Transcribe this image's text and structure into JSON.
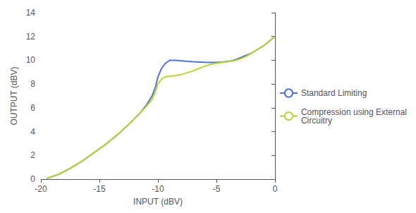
{
  "chart_data": {
    "type": "line",
    "xlabel": "INPUT (dBV)",
    "ylabel": "OUTPUT (dBV)",
    "xlim": [
      -20,
      0
    ],
    "ylim": [
      0,
      14
    ],
    "xticks": [
      -20,
      -15,
      -10,
      -5,
      0
    ],
    "yticks": [
      0,
      2,
      4,
      6,
      8,
      10,
      12,
      14
    ],
    "grid": false,
    "legend": "right",
    "x": [
      -19.5,
      -18.5,
      -17.5,
      -16.5,
      -15.5,
      -14.5,
      -13.5,
      -12.5,
      -11.5,
      -11.0,
      -10.5,
      -10.2,
      -10.0,
      -9.7,
      -9.4,
      -9.0,
      -8.5,
      -8.0,
      -7.5,
      -7.0,
      -6.5,
      -6.0,
      -5.5,
      -5.0,
      -4.5,
      -4.0,
      -3.5,
      -3.0,
      -2.5,
      -2.0,
      -1.5,
      -1.0,
      -0.5,
      0.0
    ],
    "series": [
      {
        "name": "Standard Limiting",
        "values": [
          0.05,
          0.4,
          0.9,
          1.5,
          2.2,
          2.9,
          3.7,
          4.6,
          5.6,
          6.2,
          7.0,
          7.8,
          8.6,
          9.3,
          9.7,
          10.0,
          10.0,
          9.95,
          9.9,
          9.87,
          9.85,
          9.83,
          9.82,
          9.82,
          9.85,
          9.9,
          10.0,
          10.2,
          10.4,
          10.6,
          10.9,
          11.2,
          11.6,
          12.0
        ]
      },
      {
        "name": "Compression using External\nCircuitry",
        "values": [
          0.05,
          0.4,
          0.9,
          1.5,
          2.2,
          2.9,
          3.7,
          4.6,
          5.6,
          6.1,
          6.7,
          7.4,
          8.0,
          8.4,
          8.6,
          8.65,
          8.7,
          8.8,
          8.95,
          9.1,
          9.3,
          9.5,
          9.65,
          9.75,
          9.82,
          9.88,
          9.95,
          10.1,
          10.3,
          10.6,
          10.9,
          11.2,
          11.6,
          12.0
        ]
      }
    ]
  }
}
